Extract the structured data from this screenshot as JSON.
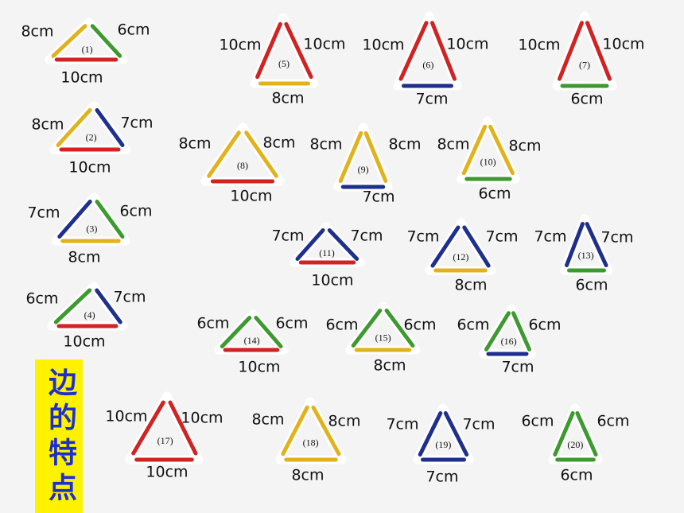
{
  "triangles": [
    {
      "label": "(1)",
      "left": "8cm",
      "right": "6cm",
      "bottom": "10cm",
      "colors": [
        "#e2b21c",
        "#3d9a2e",
        "#d32222"
      ]
    },
    {
      "label": "(2)",
      "left": "8cm",
      "right": "7cm",
      "bottom": "10cm",
      "colors": [
        "#e2b21c",
        "#1f2f8f",
        "#d32222"
      ]
    },
    {
      "label": "(3)",
      "left": "7cm",
      "right": "6cm",
      "bottom": "8cm",
      "colors": [
        "#1f2f8f",
        "#3d9a2e",
        "#e2b21c"
      ]
    },
    {
      "label": "(4)",
      "left": "6cm",
      "right": "7cm",
      "bottom": "10cm",
      "colors": [
        "#3d9a2e",
        "#1f2f8f",
        "#d32222"
      ]
    },
    {
      "label": "(5)",
      "left": "10cm",
      "right": "10cm",
      "bottom": "8cm",
      "colors": [
        "#d32222",
        "#d32222",
        "#e2b21c"
      ]
    },
    {
      "label": "(6)",
      "left": "10cm",
      "right": "10cm",
      "bottom": "7cm",
      "colors": [
        "#d32222",
        "#d32222",
        "#1f2f8f"
      ]
    },
    {
      "label": "(7)",
      "left": "10cm",
      "right": "10cm",
      "bottom": "6cm",
      "colors": [
        "#d32222",
        "#d32222",
        "#3d9a2e"
      ]
    },
    {
      "label": "(8)",
      "left": "8cm",
      "right": "8cm",
      "bottom": "10cm",
      "colors": [
        "#e2b21c",
        "#e2b21c",
        "#d32222"
      ]
    },
    {
      "label": "(9)",
      "left": "8cm",
      "right": "8cm",
      "bottom": "7cm",
      "colors": [
        "#e2b21c",
        "#e2b21c",
        "#1f2f8f"
      ]
    },
    {
      "label": "(10)",
      "left": "8cm",
      "right": "8cm",
      "bottom": "6cm",
      "colors": [
        "#e2b21c",
        "#e2b21c",
        "#3d9a2e"
      ]
    },
    {
      "label": "(11)",
      "left": "7cm",
      "right": "7cm",
      "bottom": "10cm",
      "colors": [
        "#1f2f8f",
        "#1f2f8f",
        "#d32222"
      ]
    },
    {
      "label": "(12)",
      "left": "7cm",
      "right": "7cm",
      "bottom": "8cm",
      "colors": [
        "#1f2f8f",
        "#1f2f8f",
        "#e2b21c"
      ]
    },
    {
      "label": "(13)",
      "left": "7cm",
      "right": "7cm",
      "bottom": "6cm",
      "colors": [
        "#1f2f8f",
        "#1f2f8f",
        "#3d9a2e"
      ]
    },
    {
      "label": "(14)",
      "left": "6cm",
      "right": "6cm",
      "bottom": "10cm",
      "colors": [
        "#3d9a2e",
        "#3d9a2e",
        "#d32222"
      ]
    },
    {
      "label": "(15)",
      "left": "6cm",
      "right": "6cm",
      "bottom": "8cm",
      "colors": [
        "#3d9a2e",
        "#3d9a2e",
        "#e2b21c"
      ]
    },
    {
      "label": "(16)",
      "left": "6cm",
      "right": "6cm",
      "bottom": "7cm",
      "colors": [
        "#3d9a2e",
        "#3d9a2e",
        "#1f2f8f"
      ]
    },
    {
      "label": "(17)",
      "left": "10cm",
      "right": "10cm",
      "bottom": "10cm",
      "colors": [
        "#d32222",
        "#d32222",
        "#d32222"
      ]
    },
    {
      "label": "(18)",
      "left": "8cm",
      "right": "8cm",
      "bottom": "8cm",
      "colors": [
        "#e2b21c",
        "#e2b21c",
        "#e2b21c"
      ]
    },
    {
      "label": "(19)",
      "left": "7cm",
      "right": "7cm",
      "bottom": "7cm",
      "colors": [
        "#1f2f8f",
        "#1f2f8f",
        "#1f2f8f"
      ]
    },
    {
      "label": "(20)",
      "left": "6cm",
      "right": "6cm",
      "bottom": "6cm",
      "colors": [
        "#3d9a2e",
        "#3d9a2e",
        "#3d9a2e"
      ]
    }
  ],
  "sidebar": {
    "title": "边的特点"
  }
}
